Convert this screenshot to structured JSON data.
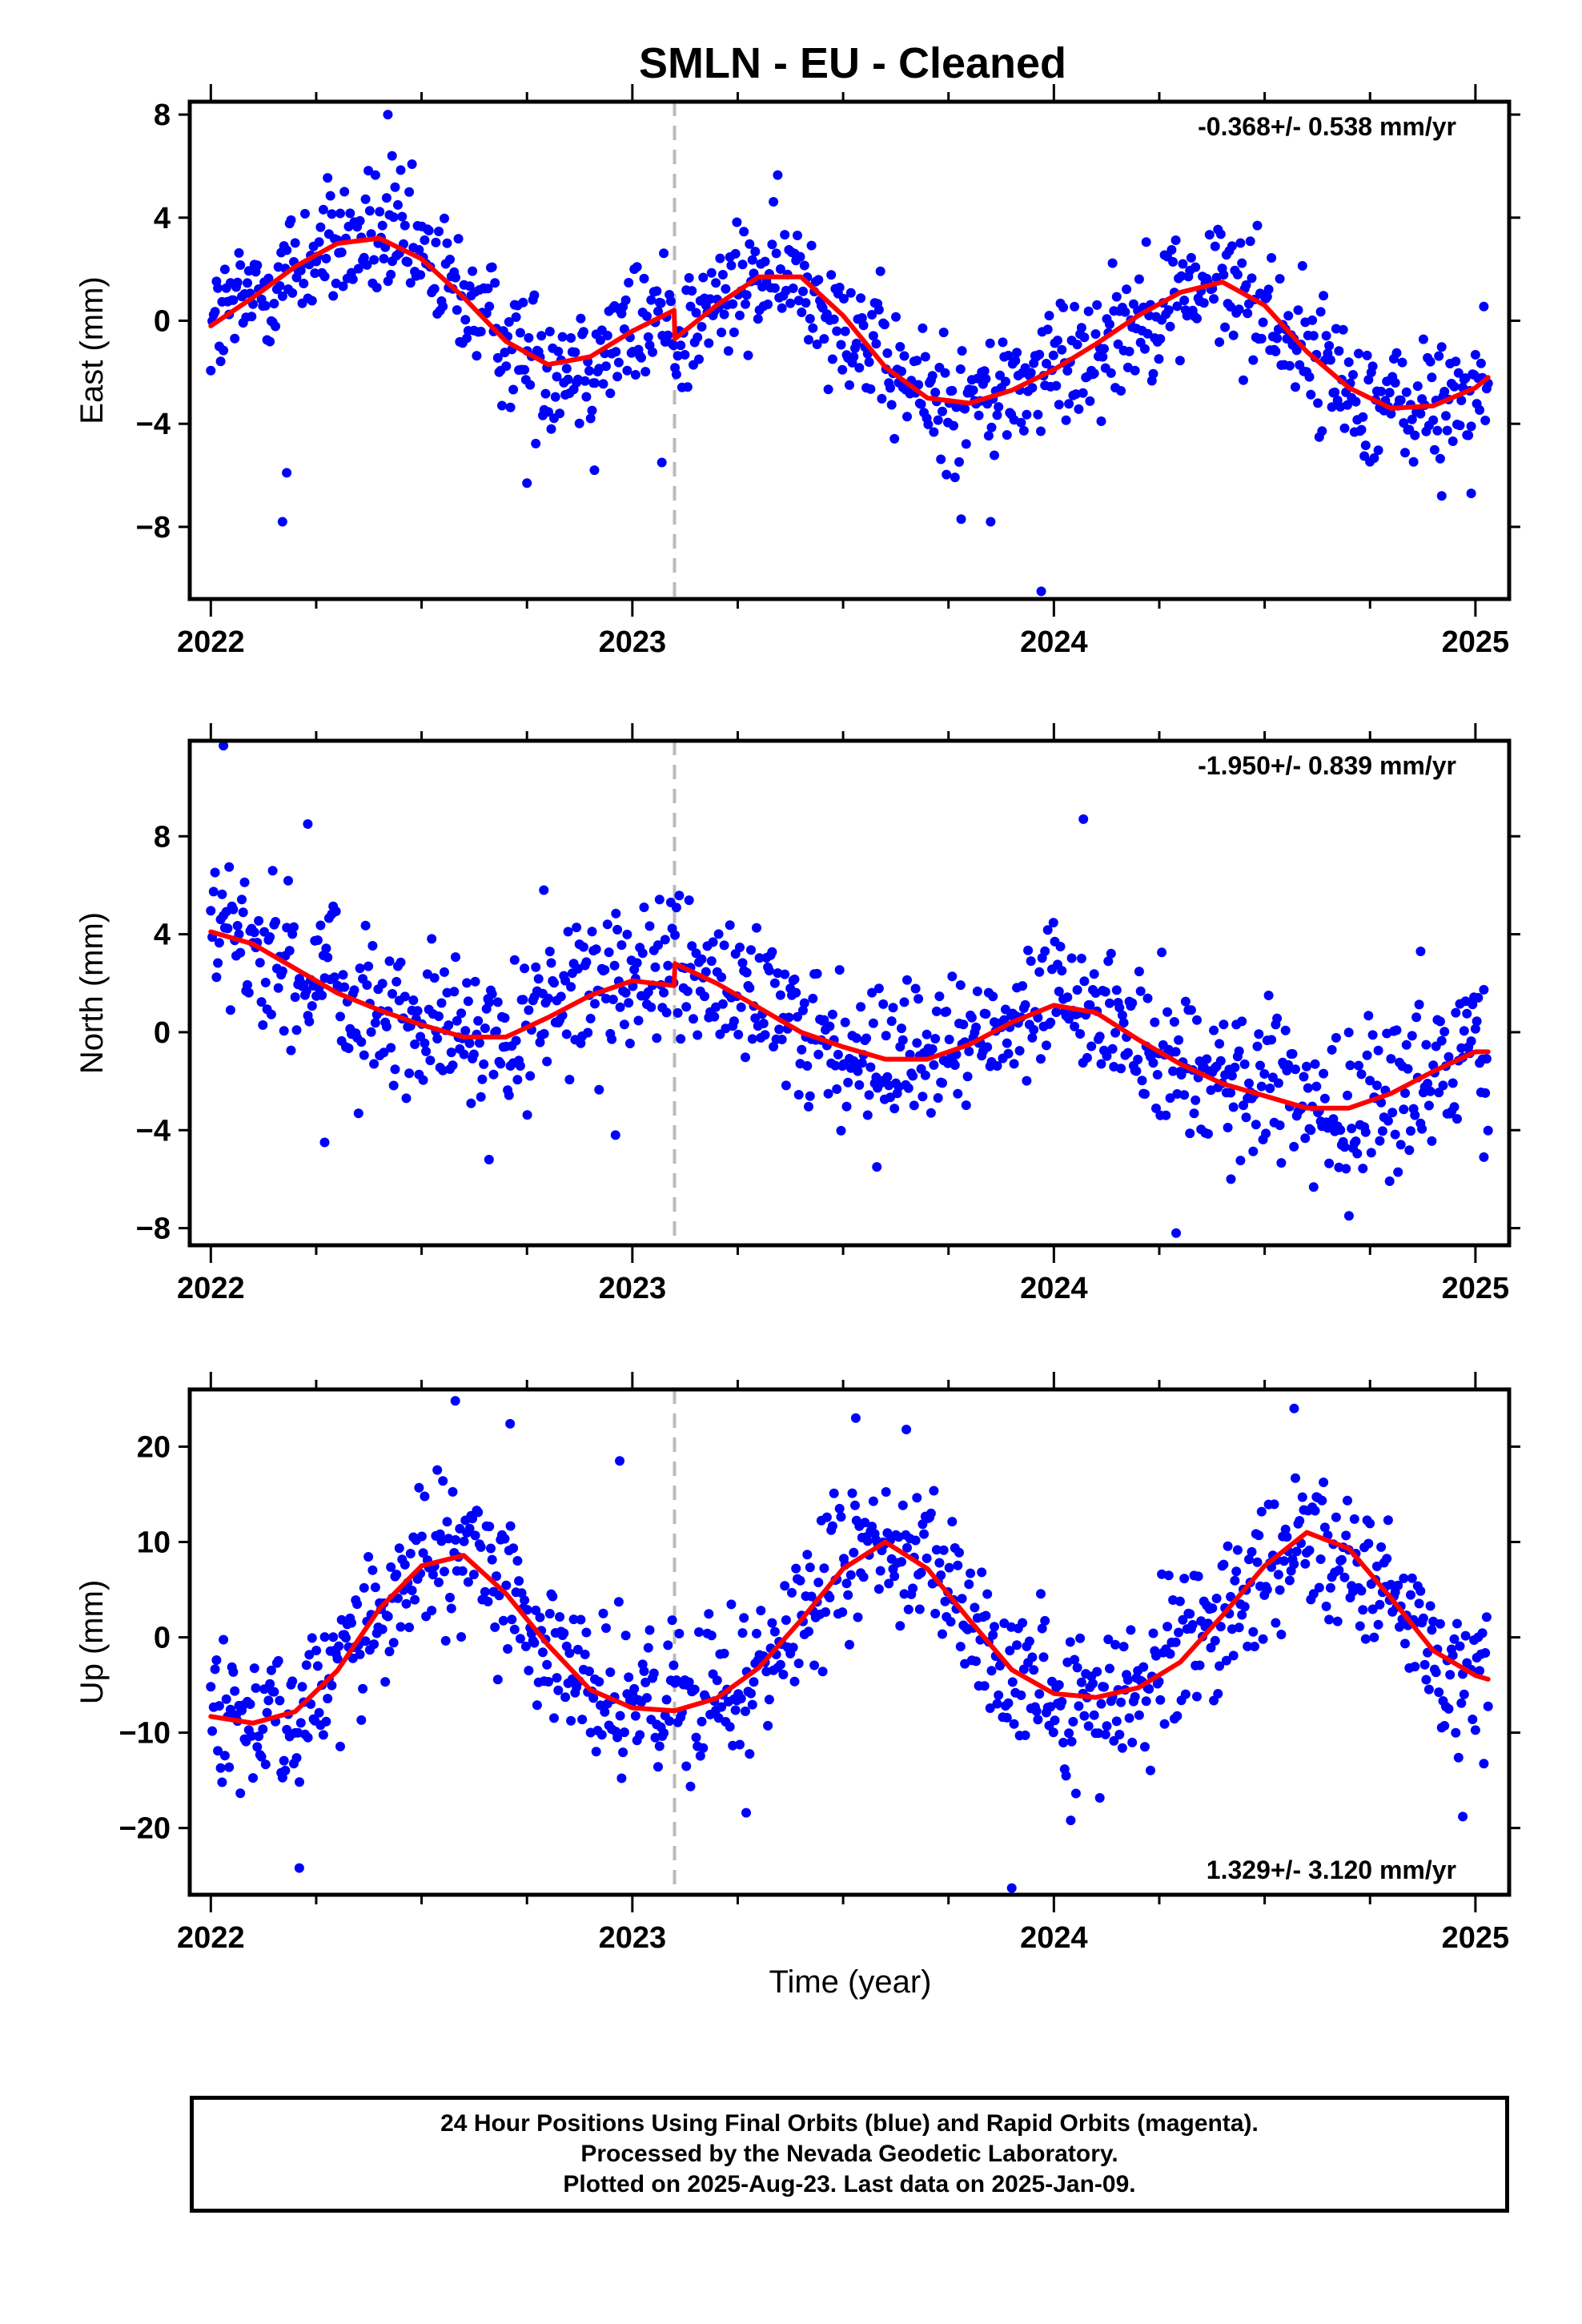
{
  "title": "SMLN  - EU - Cleaned",
  "xlabel": "Time (year)",
  "footer": {
    "line1": "24 Hour Positions Using Final Orbits (blue) and Rapid Orbits (magenta).",
    "line2": "Processed by the Nevada Geodetic Laboratory.",
    "line3": "Plotted on 2025-Aug-23. Last data on 2025-Jan-09."
  },
  "colors": {
    "points": "#0000ff",
    "model": "#ff0000",
    "break_line": "#bbbbbb",
    "frame": "#000000"
  },
  "chart_data": [
    {
      "type": "scatter",
      "component": "east",
      "ylabel": "East (mm)",
      "rate_label": "-0.368+/- 0.538 mm/yr",
      "rate_position": "top-right",
      "xlim": [
        2021.95,
        2025.08
      ],
      "ylim": [
        -10.8,
        8.5
      ],
      "xticks": [
        2022,
        2023,
        2024,
        2025
      ],
      "yticks": [
        8,
        4,
        0,
        -4,
        -8
      ],
      "equipment_break": 2023.1,
      "seasonal_model": {
        "x": [
          2022.0,
          2022.1,
          2022.2,
          2022.3,
          2022.4,
          2022.5,
          2022.6,
          2022.7,
          2022.8,
          2022.9,
          2023.0,
          2023.099,
          2023.101,
          2023.2,
          2023.3,
          2023.4,
          2023.5,
          2023.6,
          2023.7,
          2023.8,
          2023.9,
          2024.0,
          2024.1,
          2024.2,
          2024.3,
          2024.4,
          2024.5,
          2024.6,
          2024.7,
          2024.8,
          2024.9,
          2025.0,
          2025.03
        ],
        "y": [
          -0.2,
          0.9,
          2.1,
          3.0,
          3.2,
          2.4,
          0.9,
          -0.8,
          -1.7,
          -1.4,
          -0.4,
          0.4,
          -0.7,
          0.6,
          1.7,
          1.7,
          0.2,
          -1.8,
          -3.0,
          -3.2,
          -2.7,
          -1.9,
          -0.9,
          0.2,
          1.1,
          1.5,
          0.6,
          -1.2,
          -2.6,
          -3.4,
          -3.3,
          -2.6,
          -2.2
        ]
      },
      "scatter": {
        "points_per_year": 300,
        "noise_mm": 1.3,
        "outliers": [
          [
            2022.17,
            -7.8
          ],
          [
            2022.18,
            -5.9
          ],
          [
            2022.42,
            8.0
          ],
          [
            2022.43,
            6.4
          ],
          [
            2022.75,
            -6.3
          ],
          [
            2022.91,
            -5.8
          ],
          [
            2023.07,
            -5.5
          ],
          [
            2023.78,
            -7.7
          ],
          [
            2023.85,
            -7.8
          ],
          [
            2023.97,
            -10.5
          ],
          [
            2024.92,
            -6.8
          ],
          [
            2024.99,
            -6.7
          ]
        ]
      }
    },
    {
      "type": "scatter",
      "component": "north",
      "ylabel": "North (mm)",
      "rate_label": "-1.950+/- 0.839 mm/yr",
      "rate_position": "top-right",
      "xlim": [
        2021.95,
        2025.08
      ],
      "ylim": [
        -8.7,
        11.9
      ],
      "xticks": [
        2022,
        2023,
        2024,
        2025
      ],
      "yticks": [
        8,
        4,
        0,
        -4,
        -8
      ],
      "equipment_break": 2023.1,
      "seasonal_model": {
        "x": [
          2022.0,
          2022.1,
          2022.2,
          2022.3,
          2022.4,
          2022.5,
          2022.6,
          2022.7,
          2022.8,
          2022.9,
          2023.0,
          2023.099,
          2023.101,
          2023.2,
          2023.3,
          2023.4,
          2023.5,
          2023.6,
          2023.7,
          2023.8,
          2023.9,
          2024.0,
          2024.1,
          2024.2,
          2024.3,
          2024.4,
          2024.5,
          2024.6,
          2024.7,
          2024.8,
          2024.9,
          2025.0,
          2025.03
        ],
        "y": [
          4.1,
          3.6,
          2.6,
          1.6,
          0.9,
          0.3,
          -0.2,
          -0.2,
          0.6,
          1.5,
          2.1,
          1.9,
          2.8,
          2.0,
          1.0,
          0.0,
          -0.6,
          -1.1,
          -1.1,
          -0.5,
          0.4,
          1.1,
          0.8,
          -0.3,
          -1.3,
          -2.1,
          -2.6,
          -3.1,
          -3.1,
          -2.5,
          -1.6,
          -0.8,
          -0.8
        ]
      },
      "scatter": {
        "points_per_year": 300,
        "noise_mm": 1.5,
        "outliers": [
          [
            2022.03,
            11.7
          ],
          [
            2022.23,
            8.5
          ],
          [
            2022.27,
            -4.5
          ],
          [
            2022.66,
            -5.2
          ],
          [
            2022.79,
            5.8
          ],
          [
            2022.96,
            -4.2
          ],
          [
            2023.58,
            -5.5
          ],
          [
            2024.07,
            8.7
          ],
          [
            2024.29,
            -8.2
          ],
          [
            2024.42,
            -6.0
          ],
          [
            2024.7,
            -7.5
          ],
          [
            2024.87,
            3.3
          ],
          [
            2025.02,
            -5.1
          ]
        ]
      }
    },
    {
      "type": "scatter",
      "component": "up",
      "ylabel": "Up (mm)",
      "rate_label": "1.329+/- 3.120 mm/yr",
      "rate_position": "bottom-right",
      "xlim": [
        2021.95,
        2025.08
      ],
      "ylim": [
        -27,
        26
      ],
      "xticks": [
        2022,
        2023,
        2024,
        2025
      ],
      "yticks": [
        20,
        10,
        0,
        -10,
        -20
      ],
      "equipment_break": 2023.1,
      "seasonal_model": {
        "x": [
          2022.0,
          2022.1,
          2022.2,
          2022.3,
          2022.4,
          2022.5,
          2022.6,
          2022.7,
          2022.8,
          2022.9,
          2023.0,
          2023.1,
          2023.2,
          2023.3,
          2023.4,
          2023.5,
          2023.6,
          2023.7,
          2023.8,
          2023.9,
          2024.0,
          2024.1,
          2024.2,
          2024.3,
          2024.4,
          2024.5,
          2024.6,
          2024.7,
          2024.8,
          2024.9,
          2025.0,
          2025.03
        ],
        "y": [
          -8.3,
          -9.0,
          -7.8,
          -3.5,
          3.0,
          7.5,
          8.6,
          4.6,
          -0.8,
          -5.5,
          -7.4,
          -7.7,
          -6.4,
          -3.2,
          1.8,
          7.2,
          10.0,
          7.2,
          1.8,
          -3.4,
          -5.9,
          -6.3,
          -5.3,
          -2.6,
          2.3,
          7.5,
          11.0,
          9.3,
          4.1,
          -1.4,
          -4.0,
          -4.4
        ]
      },
      "scatter": {
        "points_per_year": 300,
        "noise_mm": 4.0,
        "outliers": [
          [
            2022.21,
            -24.2
          ],
          [
            2022.58,
            24.8
          ],
          [
            2022.71,
            22.4
          ],
          [
            2022.97,
            18.5
          ],
          [
            2023.27,
            -18.4
          ],
          [
            2023.53,
            23.0
          ],
          [
            2023.65,
            21.8
          ],
          [
            2023.9,
            -26.3
          ],
          [
            2024.04,
            -19.2
          ],
          [
            2024.57,
            24.0
          ],
          [
            2024.97,
            -18.8
          ]
        ]
      }
    }
  ]
}
